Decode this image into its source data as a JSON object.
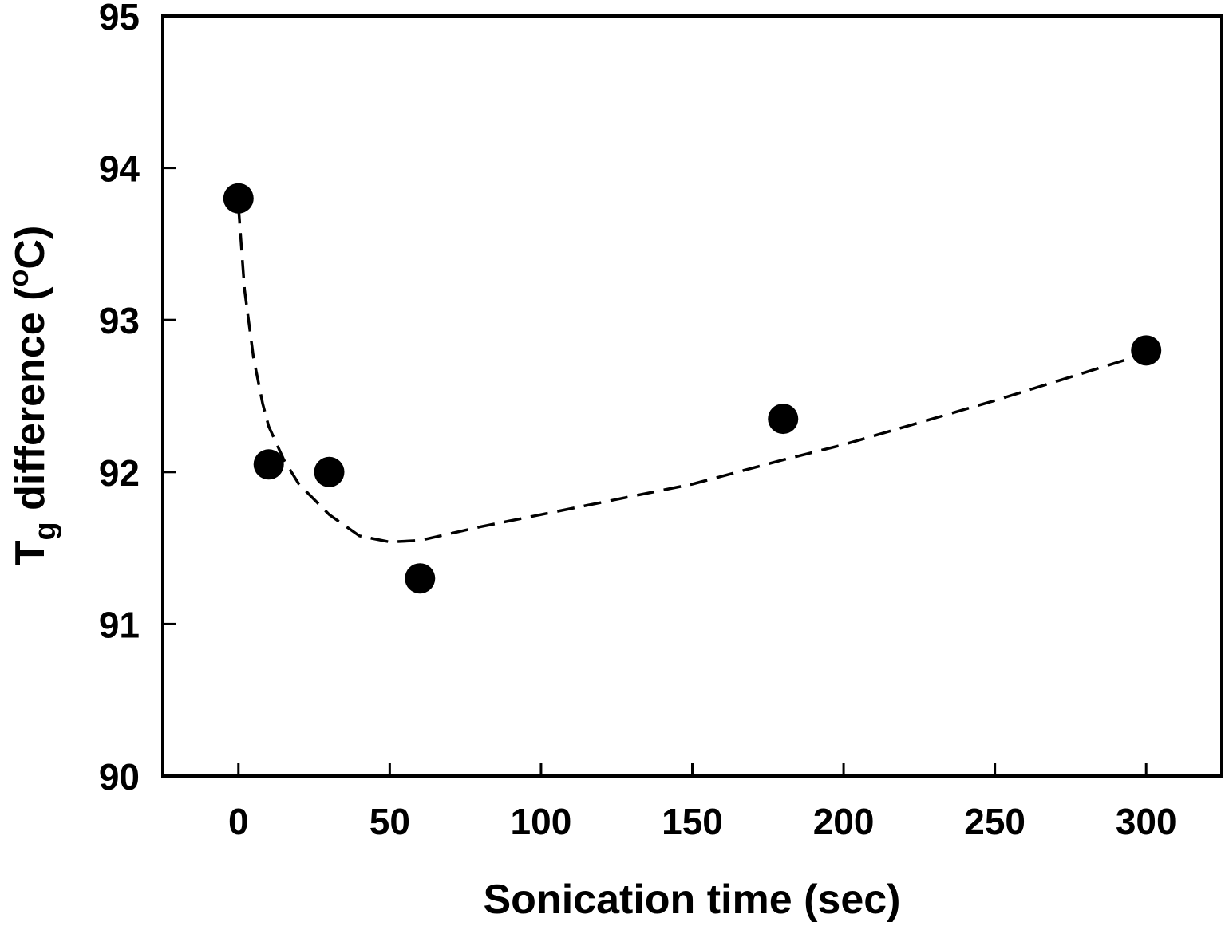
{
  "chart_data": {
    "type": "scatter",
    "title": "",
    "xlabel": "Sonication time (sec)",
    "ylabel": {
      "main": "T",
      "subscript": "g",
      "text": " difference (",
      "superscript": "o",
      "unit": "C)"
    },
    "xlim": [
      -25,
      325
    ],
    "ylim": [
      90,
      95
    ],
    "xticks": [
      0,
      50,
      100,
      150,
      200,
      250,
      300
    ],
    "yticks": [
      90,
      91,
      92,
      93,
      94,
      95
    ],
    "grid": false,
    "legend": "none",
    "series": [
      {
        "type": "scatter",
        "marker": "filled-circle",
        "color": "#000000",
        "x": [
          0,
          10,
          30,
          60,
          180,
          300
        ],
        "y": [
          93.8,
          92.05,
          92.0,
          91.3,
          92.35,
          92.8
        ]
      },
      {
        "type": "line",
        "style": "dashed",
        "color": "#000000",
        "x": [
          0,
          2,
          5,
          8,
          10,
          15,
          20,
          30,
          40,
          50,
          60,
          80,
          100,
          150,
          180,
          200,
          250,
          300
        ],
        "y": [
          93.75,
          93.2,
          92.75,
          92.45,
          92.3,
          92.08,
          91.92,
          91.72,
          91.58,
          91.54,
          91.55,
          91.64,
          91.72,
          91.92,
          92.08,
          92.18,
          92.47,
          92.78
        ]
      }
    ]
  }
}
